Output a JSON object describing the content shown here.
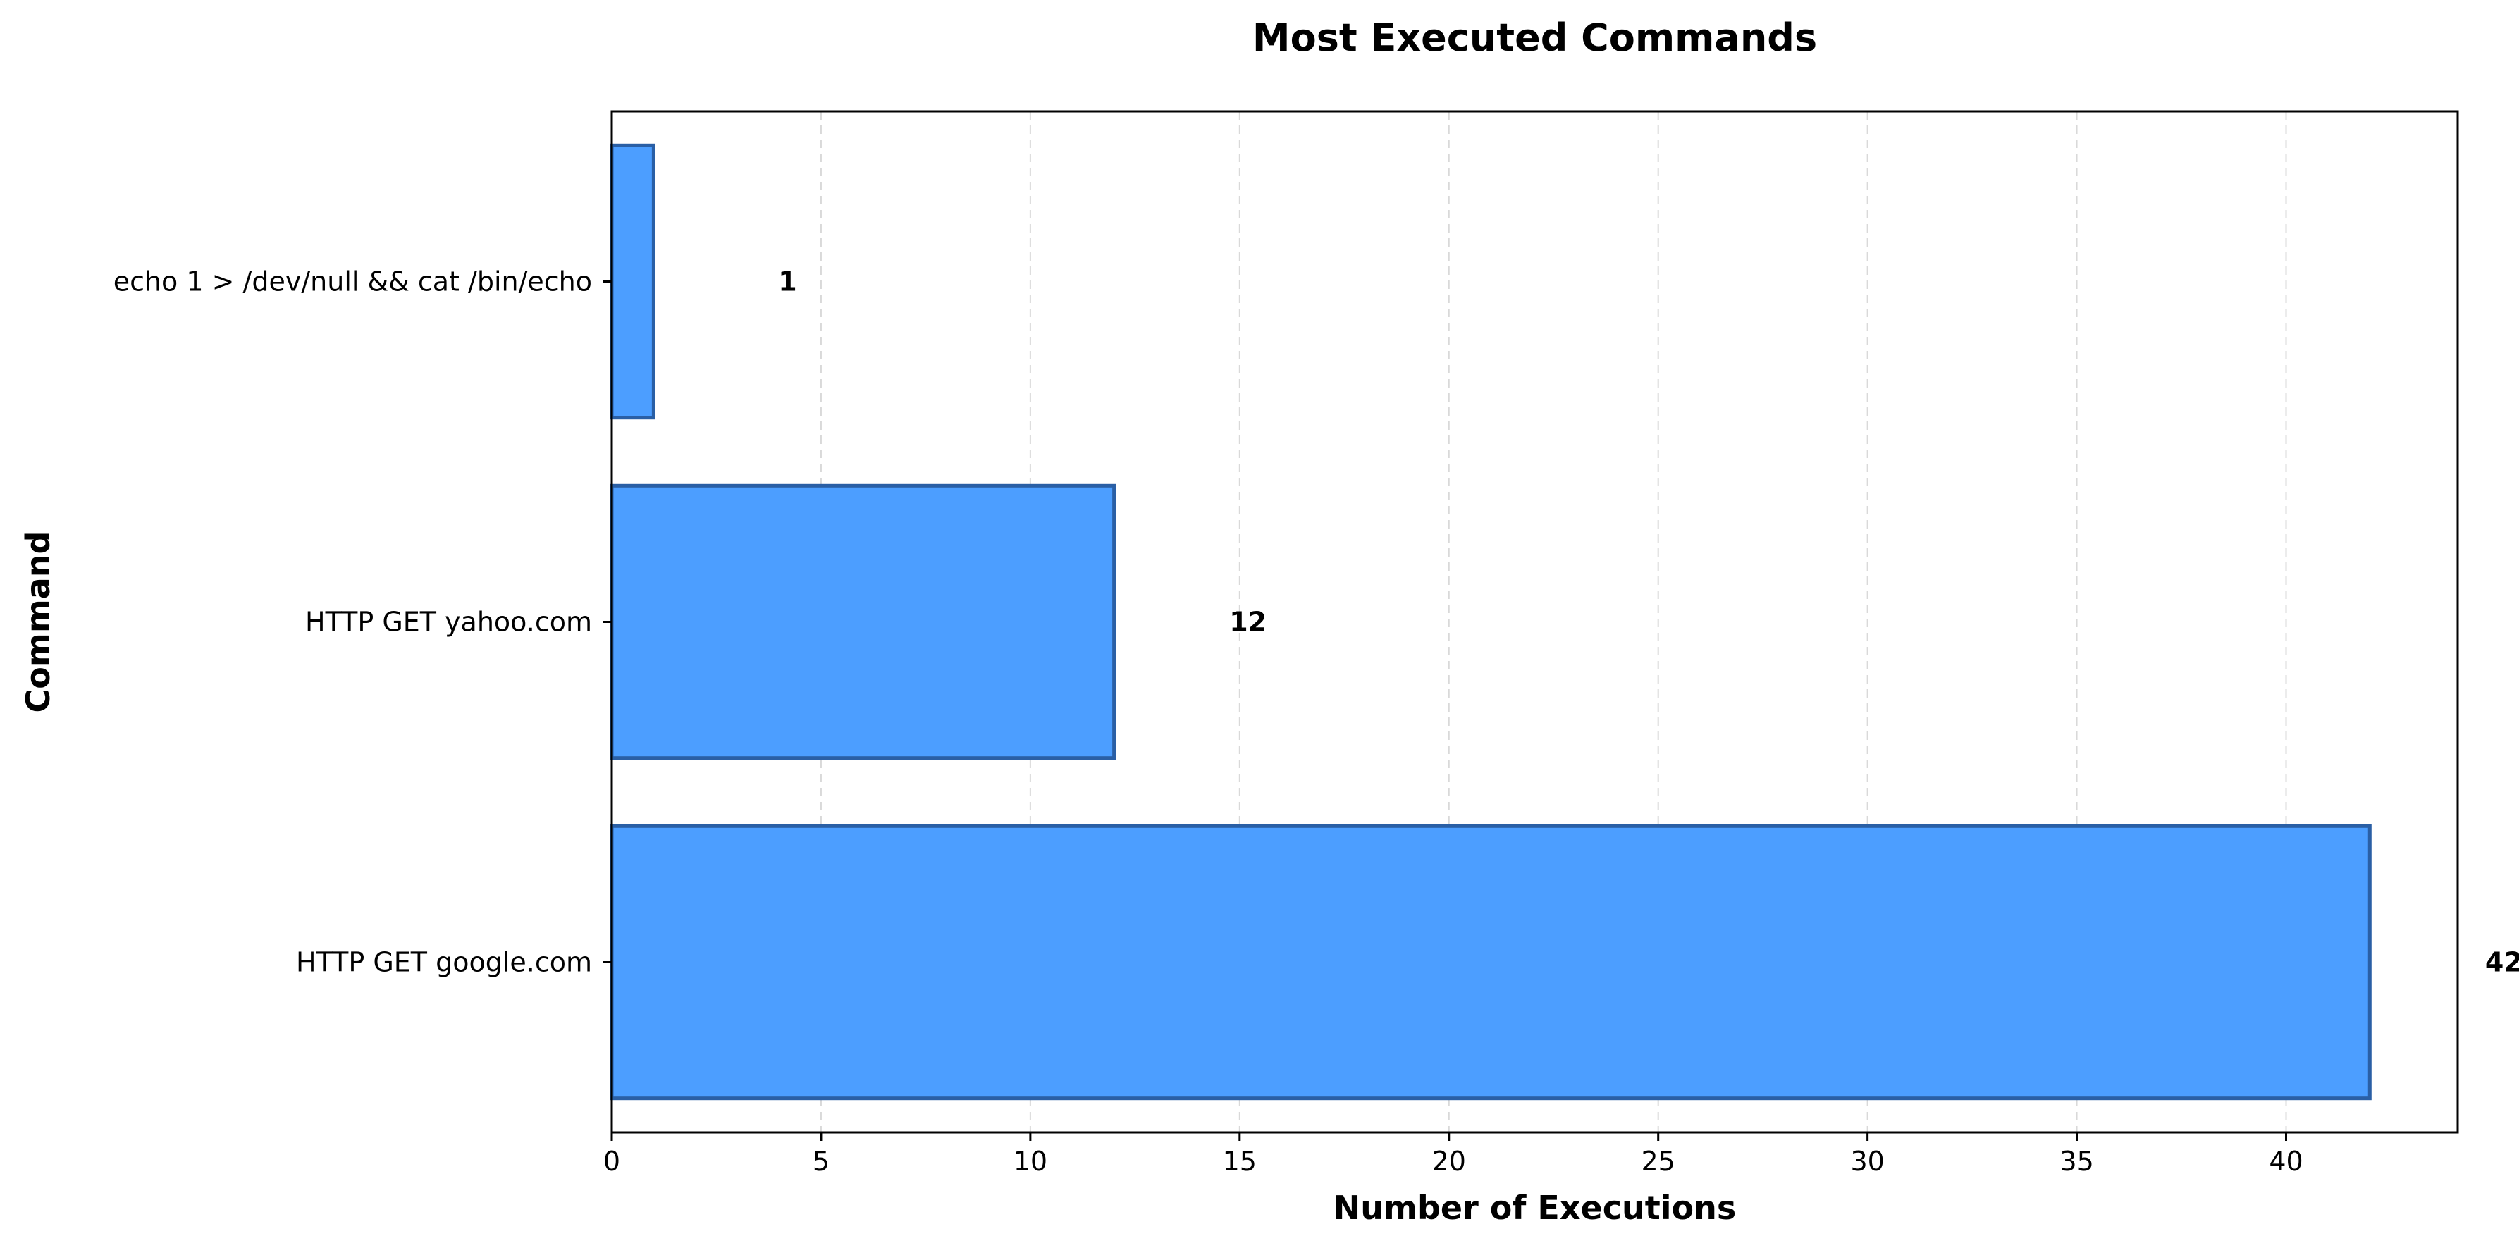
{
  "chart_data": {
    "type": "bar",
    "orientation": "horizontal",
    "title": "Most Executed Commands",
    "xlabel": "Number of Executions",
    "ylabel": "Command",
    "categories": [
      "HTTP GET google.com",
      "HTTP GET yahoo.com",
      "echo 1 > /dev/null && cat /bin/echo"
    ],
    "values": [
      42,
      12,
      1
    ],
    "xlim": [
      0,
      44.1
    ],
    "xticks": [
      0,
      5,
      10,
      15,
      20,
      25,
      30,
      35,
      40
    ],
    "grid": "x-dashed",
    "legend": "none",
    "colors": {
      "bar_fill": "#4C9EFF",
      "bar_edge": "#2A5FA5",
      "grid": "#d9d9d9",
      "axis": "#000000"
    }
  }
}
